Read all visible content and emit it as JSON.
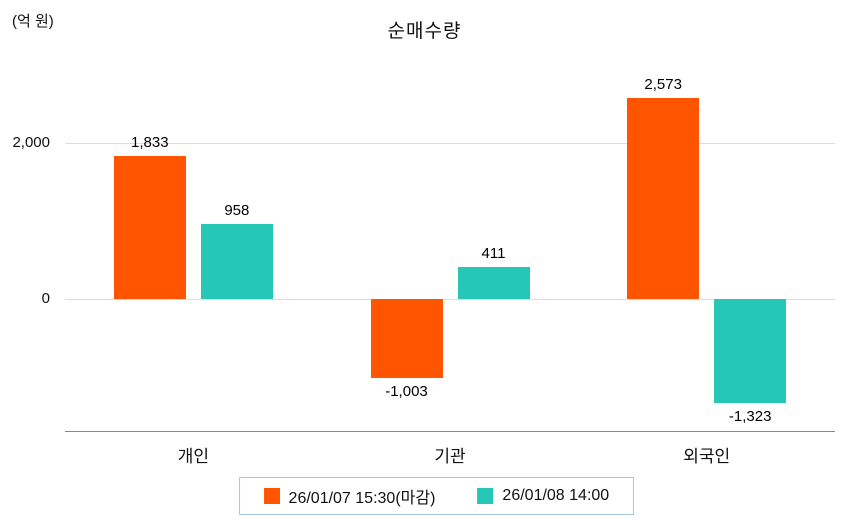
{
  "chart_data": {
    "type": "bar",
    "title": "순매수량",
    "unit_label": "(억 원)",
    "categories": [
      "개인",
      "기관",
      "외국인"
    ],
    "series": [
      {
        "name": "26/01/07 15:30(마감)",
        "color": "#ff5500",
        "values": [
          1833,
          -1003,
          2573
        ]
      },
      {
        "name": "26/01/08 14:00",
        "color": "#26c7b7",
        "values": [
          958,
          411,
          -1323
        ]
      }
    ],
    "value_labels": [
      [
        "1,833",
        "-1,003",
        "2,573"
      ],
      [
        "958",
        "411",
        "-1,323"
      ]
    ],
    "ylim": [
      -1700,
      3060
    ],
    "yticks": [
      {
        "value": 2000,
        "label": "2,000"
      },
      {
        "value": 0,
        "label": "0"
      }
    ],
    "grid": "horizontal",
    "legend_position": "bottom",
    "colors": {
      "grid_line": "#dddddd",
      "axis_line": "#888888",
      "legend_border": "#a9c6e3",
      "text": "#111111"
    }
  }
}
